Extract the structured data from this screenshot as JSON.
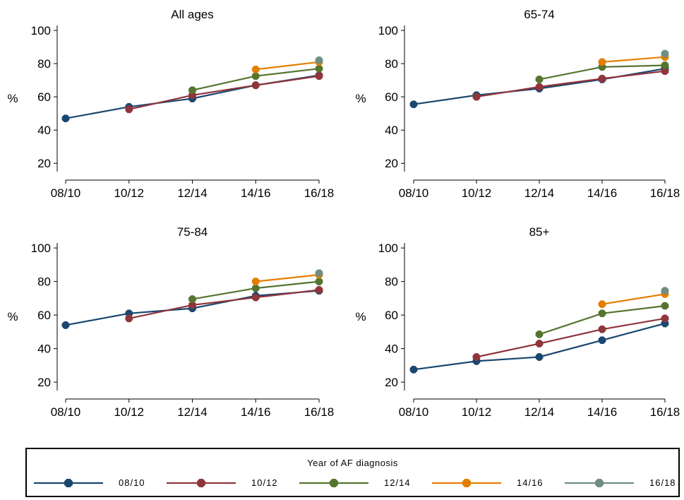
{
  "chart_data": [
    {
      "type": "line",
      "title": "All ages",
      "xlabel": "",
      "ylabel": "%",
      "ylim": [
        15,
        103
      ],
      "yticks": [
        20,
        40,
        60,
        80,
        100
      ],
      "categories": [
        "08/10",
        "10/12",
        "12/14",
        "14/16",
        "16/18"
      ],
      "series": [
        {
          "name": "08/10",
          "values": [
            47,
            54,
            59,
            67,
            73
          ]
        },
        {
          "name": "10/12",
          "values": [
            null,
            52.5,
            61,
            67,
            72.5
          ]
        },
        {
          "name": "12/14",
          "values": [
            null,
            null,
            64,
            72.5,
            77
          ]
        },
        {
          "name": "14/16",
          "values": [
            null,
            null,
            null,
            76.5,
            81
          ]
        },
        {
          "name": "16/18",
          "values": [
            null,
            null,
            null,
            null,
            82
          ]
        }
      ]
    },
    {
      "type": "line",
      "title": "65-74",
      "xlabel": "",
      "ylabel": "%",
      "ylim": [
        15,
        103
      ],
      "yticks": [
        20,
        40,
        60,
        80,
        100
      ],
      "categories": [
        "08/10",
        "10/12",
        "12/14",
        "14/16",
        "16/18"
      ],
      "series": [
        {
          "name": "08/10",
          "values": [
            55.5,
            61,
            65,
            70.5,
            77
          ]
        },
        {
          "name": "10/12",
          "values": [
            null,
            60,
            66,
            71,
            75.5
          ]
        },
        {
          "name": "12/14",
          "values": [
            null,
            null,
            70.5,
            78,
            79
          ]
        },
        {
          "name": "14/16",
          "values": [
            null,
            null,
            null,
            81,
            84
          ]
        },
        {
          "name": "16/18",
          "values": [
            null,
            null,
            null,
            null,
            86
          ]
        }
      ]
    },
    {
      "type": "line",
      "title": "75-84",
      "xlabel": "",
      "ylabel": "%",
      "ylim": [
        15,
        103
      ],
      "yticks": [
        20,
        40,
        60,
        80,
        100
      ],
      "categories": [
        "08/10",
        "10/12",
        "12/14",
        "14/16",
        "16/18"
      ],
      "series": [
        {
          "name": "08/10",
          "values": [
            54,
            61,
            64,
            71.5,
            74.5
          ]
        },
        {
          "name": "10/12",
          "values": [
            null,
            58,
            66,
            70.5,
            75
          ]
        },
        {
          "name": "12/14",
          "values": [
            null,
            null,
            69.5,
            76,
            80
          ]
        },
        {
          "name": "14/16",
          "values": [
            null,
            null,
            null,
            80,
            84
          ]
        },
        {
          "name": "16/18",
          "values": [
            null,
            null,
            null,
            null,
            85
          ]
        }
      ]
    },
    {
      "type": "line",
      "title": "85+",
      "xlabel": "",
      "ylabel": "%",
      "ylim": [
        15,
        103
      ],
      "yticks": [
        20,
        40,
        60,
        80,
        100
      ],
      "categories": [
        "08/10",
        "10/12",
        "12/14",
        "14/16",
        "16/18"
      ],
      "series": [
        {
          "name": "08/10",
          "values": [
            27.5,
            32.5,
            35,
            45,
            55
          ]
        },
        {
          "name": "10/12",
          "values": [
            null,
            35,
            43,
            51.5,
            58
          ]
        },
        {
          "name": "12/14",
          "values": [
            null,
            null,
            48.5,
            61,
            65.5
          ]
        },
        {
          "name": "14/16",
          "values": [
            null,
            null,
            null,
            66.5,
            72.5
          ]
        },
        {
          "name": "16/18",
          "values": [
            null,
            null,
            null,
            null,
            74.5
          ]
        }
      ]
    }
  ],
  "legend": {
    "title": "Year of AF diagnosis",
    "placement": "bottom",
    "items": [
      {
        "label": "08/10",
        "color": "#1a476f"
      },
      {
        "label": "10/12",
        "color": "#90353b"
      },
      {
        "label": "12/14",
        "color": "#55752f"
      },
      {
        "label": "14/16",
        "color": "#e37e00"
      },
      {
        "label": "16/18",
        "color": "#6e8e84"
      }
    ]
  }
}
